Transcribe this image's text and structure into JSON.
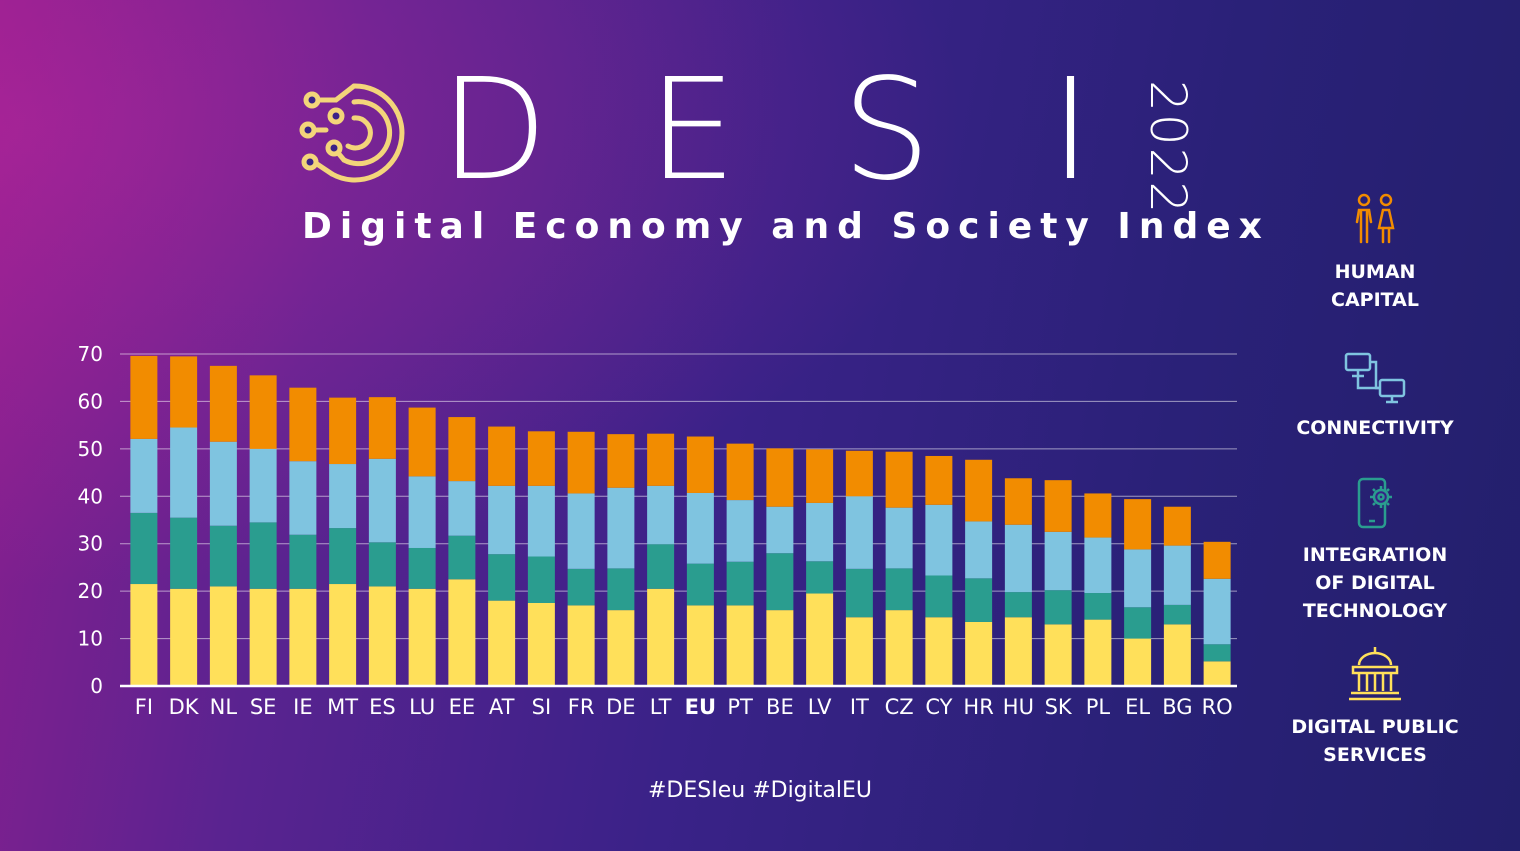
{
  "header": {
    "letters": [
      "D",
      "E",
      "S",
      "I"
    ],
    "subtitle": "Digital Economy and Society Index",
    "year": "2022"
  },
  "legend": [
    {
      "label": "HUMAN\nCAPITAL",
      "icon": "people-icon",
      "color": "#f28c00"
    },
    {
      "label": "CONNECTIVITY",
      "icon": "network-icon",
      "color": "#7fc4e0"
    },
    {
      "label": "INTEGRATION\nOF DIGITAL\nTECHNOLOGY",
      "icon": "phone-gear-icon",
      "color": "#2a9d8f"
    },
    {
      "label": "DIGITAL PUBLIC\nSERVICES",
      "icon": "government-building-icon",
      "color": "#ffe05a"
    }
  ],
  "hashtags": "#DESIeu  #DigitalEU",
  "chart_data": {
    "type": "bar",
    "stacked": true,
    "categories": [
      "FI",
      "DK",
      "NL",
      "SE",
      "IE",
      "MT",
      "ES",
      "LU",
      "EE",
      "AT",
      "SI",
      "FR",
      "DE",
      "LT",
      "EU",
      "PT",
      "BE",
      "LV",
      "IT",
      "CZ",
      "CY",
      "HR",
      "HU",
      "SK",
      "PL",
      "EL",
      "BG",
      "RO"
    ],
    "highlight_category": "EU",
    "ylim": [
      0,
      70
    ],
    "yticks": [
      0,
      10,
      20,
      30,
      40,
      50,
      60,
      70
    ],
    "grid": true,
    "series": [
      {
        "color": "#ffe05a",
        "values": [
          21.5,
          20.5,
          21,
          20.5,
          20.5,
          21.5,
          21,
          20.5,
          22.5,
          18,
          17.5,
          17,
          16,
          20.5,
          17,
          17,
          16,
          19.5,
          14.5,
          16,
          14.5,
          13.5,
          14.5,
          13,
          14,
          10,
          13,
          5.2
        ]
      },
      {
        "color": "#2a9d8f",
        "values": [
          15,
          15,
          12.8,
          14,
          11.4,
          11.8,
          9.3,
          8.6,
          9.2,
          9.8,
          9.8,
          7.7,
          8.8,
          9.4,
          8.8,
          9.2,
          12,
          6.8,
          10.2,
          8.8,
          8.8,
          9.2,
          5.3,
          7.2,
          5.6,
          6.6,
          4.1,
          3.6
        ]
      },
      {
        "color": "#7fc4e0",
        "values": [
          15.6,
          19,
          17.7,
          15.5,
          15.5,
          13.5,
          17.6,
          15.1,
          11.5,
          14.4,
          14.9,
          15.9,
          17,
          12.3,
          14.9,
          13,
          9.8,
          12.3,
          15.3,
          12.8,
          14.9,
          12,
          14.2,
          12.3,
          11.7,
          12.2,
          12.5,
          13.8
        ]
      },
      {
        "color": "#f28c00",
        "values": [
          17.5,
          15,
          16,
          15.5,
          15.5,
          14,
          13,
          14.5,
          13.5,
          12.5,
          11.5,
          13,
          11.3,
          11,
          11.9,
          11.9,
          12.3,
          11.3,
          9.6,
          11.8,
          10.3,
          13,
          9.8,
          10.9,
          9.3,
          10.6,
          8.2,
          7.8
        ]
      }
    ]
  }
}
